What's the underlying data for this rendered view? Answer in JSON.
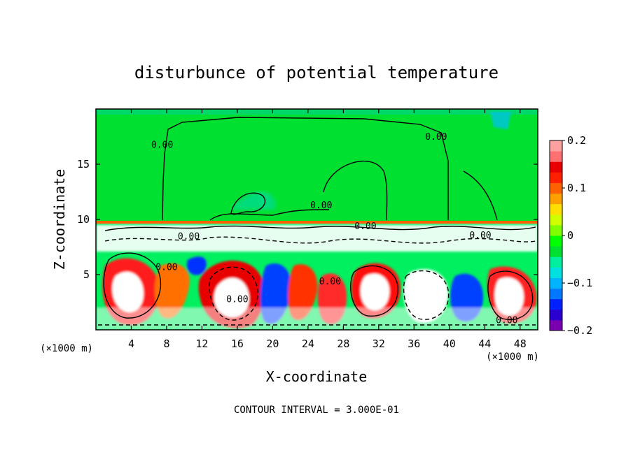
{
  "chart_data": {
    "type": "heatmap",
    "title": "disturbunce of potential temperature",
    "xlabel": "X-coordinate",
    "ylabel": "Z-coordinate",
    "x_unit": "(×1000 m)",
    "footer": "CONTOUR INTERVAL = 3.000E-01",
    "xlim": [
      0,
      50
    ],
    "ylim": [
      0,
      20
    ],
    "x_ticks": [
      {
        "value": 4,
        "label": "4"
      },
      {
        "value": 8,
        "label": "8"
      },
      {
        "value": 12,
        "label": "12"
      },
      {
        "value": 16,
        "label": "16"
      },
      {
        "value": 20,
        "label": "20"
      },
      {
        "value": 24,
        "label": "24"
      },
      {
        "value": 28,
        "label": "28"
      },
      {
        "value": 32,
        "label": "32"
      },
      {
        "value": 36,
        "label": "36"
      },
      {
        "value": 40,
        "label": "40"
      },
      {
        "value": 44,
        "label": "44"
      },
      {
        "value": 48,
        "label": "48"
      }
    ],
    "y_ticks": [
      {
        "value": 5,
        "label": "5"
      },
      {
        "value": 10,
        "label": "10"
      },
      {
        "value": 15,
        "label": "15"
      }
    ],
    "colorbar": {
      "min": -0.2,
      "max": 0.2,
      "ticks": [
        {
          "value": 0.2,
          "label": "0.2"
        },
        {
          "value": 0.1,
          "label": "0.1"
        },
        {
          "value": 0,
          "label": "0"
        },
        {
          "value": -0.1,
          "label": "−0.1"
        },
        {
          "value": -0.2,
          "label": "−0.2"
        }
      ],
      "colors": [
        "#7a00b0",
        "#2a00d0",
        "#0020ff",
        "#0078ff",
        "#00b4ff",
        "#00e0e0",
        "#00f0a0",
        "#00e030",
        "#00ff00",
        "#80ff00",
        "#d0ff00",
        "#ffe000",
        "#ffa000",
        "#ff6000",
        "#ff2000",
        "#e80000",
        "#ff7070",
        "#ffa0a0"
      ]
    },
    "contour_labels": [
      "0.00",
      "0.00",
      "0.00",
      "0.00",
      "0.00",
      "0.00",
      "0.00",
      "0.00",
      "0.00",
      "0.00"
    ],
    "contour_label_positions": [
      {
        "x": 7.5,
        "z": 16.5
      },
      {
        "x": 38.5,
        "z": 17.2
      },
      {
        "x": 25.5,
        "z": 11.0
      },
      {
        "x": 8.0,
        "z": 5.4
      },
      {
        "x": 26.5,
        "z": 4.1
      },
      {
        "x": 16.0,
        "z": 2.5
      },
      {
        "x": 10.5,
        "z": 8.2
      },
      {
        "x": 30.5,
        "z": 9.1
      },
      {
        "x": 43.5,
        "z": 8.3
      },
      {
        "x": 46.5,
        "z": 0.6
      }
    ]
  }
}
